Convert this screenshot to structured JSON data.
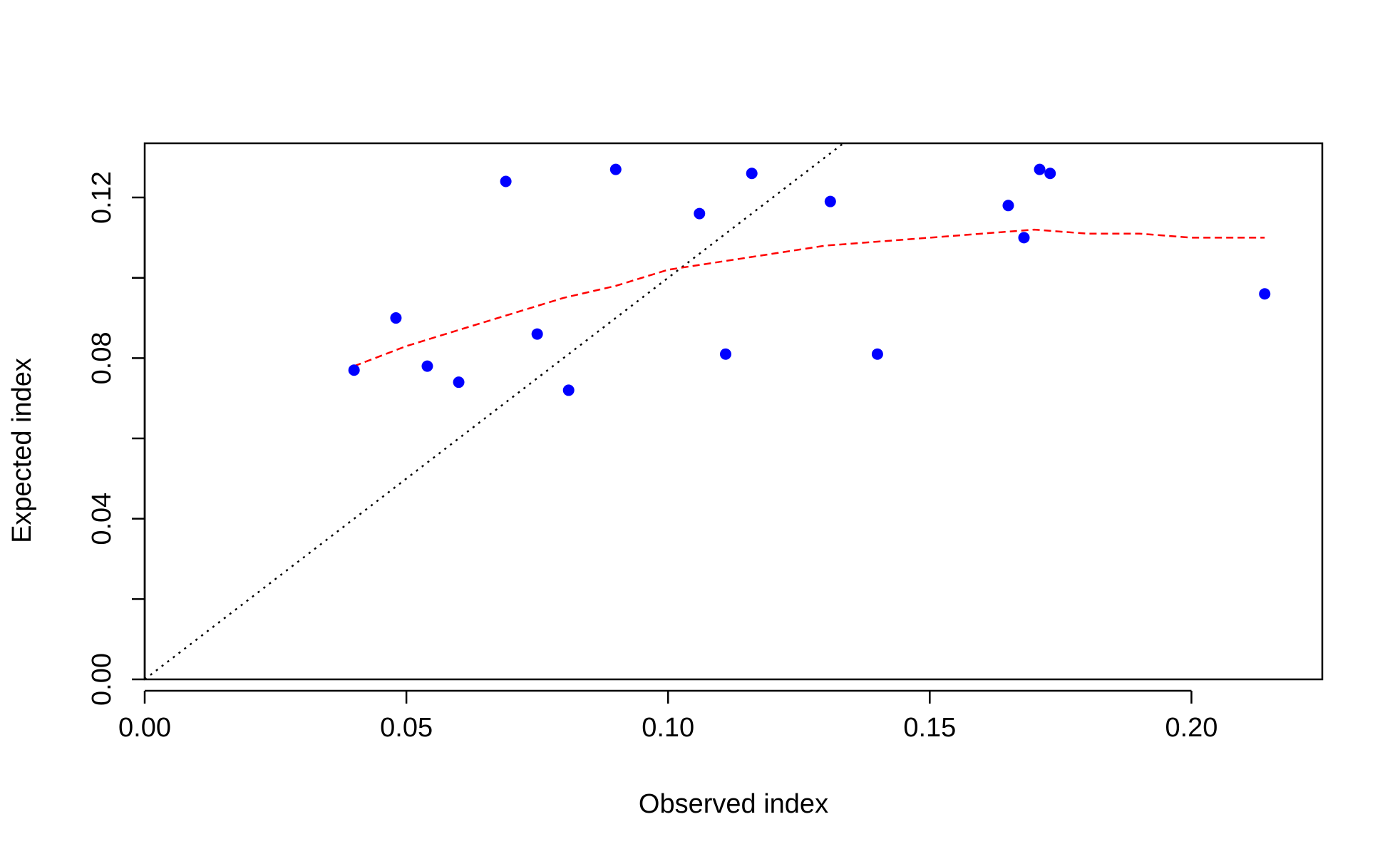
{
  "chart_data": {
    "type": "scatter",
    "title": "",
    "xlabel": "Observed index",
    "ylabel": "Expected index",
    "xlim": [
      0.0,
      0.225
    ],
    "ylim": [
      0.0,
      0.1335
    ],
    "x_ticks": [
      0.0,
      0.05,
      0.1,
      0.15,
      0.2
    ],
    "x_tick_labels": [
      "0.00",
      "0.05",
      "0.10",
      "0.15",
      "0.20"
    ],
    "y_ticks": [
      0.0,
      0.02,
      0.04,
      0.06,
      0.08,
      0.1,
      0.12
    ],
    "y_tick_labels": [
      "0.00",
      "",
      "0.04",
      "",
      "0.08",
      "",
      "0.12"
    ],
    "grid": false,
    "legend": "none",
    "colors": {
      "points": "#0000ff",
      "smooth": "#ff0000",
      "reference": "#000000",
      "axis": "#000000"
    },
    "series": [
      {
        "name": "observations",
        "kind": "points",
        "x": [
          0.04,
          0.048,
          0.054,
          0.06,
          0.069,
          0.075,
          0.081,
          0.09,
          0.106,
          0.111,
          0.116,
          0.131,
          0.14,
          0.165,
          0.168,
          0.171,
          0.173,
          0.214
        ],
        "y": [
          0.077,
          0.09,
          0.078,
          0.074,
          0.124,
          0.086,
          0.072,
          0.127,
          0.116,
          0.081,
          0.126,
          0.119,
          0.081,
          0.118,
          0.11,
          0.127,
          0.126,
          0.096
        ]
      },
      {
        "name": "smooth fit",
        "kind": "dashed-line",
        "x": [
          0.04,
          0.05,
          0.06,
          0.07,
          0.08,
          0.09,
          0.1,
          0.11,
          0.12,
          0.13,
          0.14,
          0.15,
          0.16,
          0.17,
          0.18,
          0.19,
          0.2,
          0.214
        ],
        "y": [
          0.078,
          0.083,
          0.087,
          0.091,
          0.095,
          0.098,
          0.102,
          0.104,
          0.106,
          0.108,
          0.109,
          0.11,
          0.111,
          0.112,
          0.111,
          0.111,
          0.11,
          0.11
        ]
      },
      {
        "name": "1:1 line",
        "kind": "dotted-line",
        "x": [
          0.0,
          0.1335
        ],
        "y": [
          0.0,
          0.1335
        ]
      }
    ]
  }
}
